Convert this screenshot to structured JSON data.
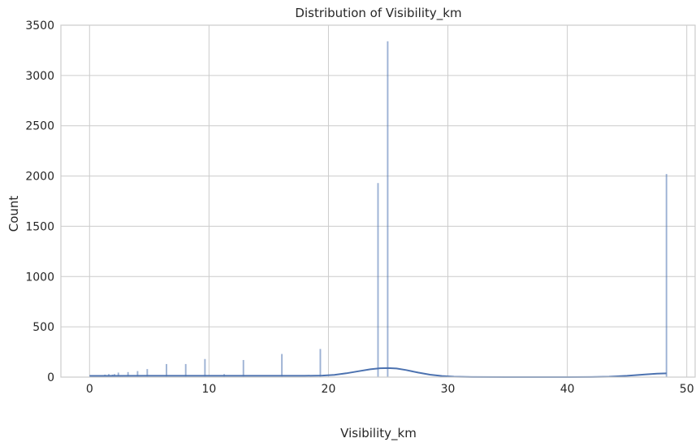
{
  "chart_data": {
    "type": "bar",
    "title": "Distribution of Visibility_km",
    "xlabel": "Visibility_km",
    "ylabel": "Count",
    "xlim": [
      -2.4,
      50.7
    ],
    "ylim": [
      0,
      3500
    ],
    "xticks": [
      0,
      10,
      20,
      30,
      40,
      50
    ],
    "yticks": [
      0,
      500,
      1000,
      1500,
      2000,
      2500,
      3000,
      3500
    ],
    "grid": true,
    "legend": "none",
    "series": [
      {
        "values": [
          {
            "x": 0.16,
            "y": 15
          },
          {
            "x": 0.32,
            "y": 15
          },
          {
            "x": 0.48,
            "y": 15
          },
          {
            "x": 0.64,
            "y": 15
          },
          {
            "x": 0.8,
            "y": 15
          },
          {
            "x": 0.97,
            "y": 20
          },
          {
            "x": 1.13,
            "y": 20
          },
          {
            "x": 1.29,
            "y": 25
          },
          {
            "x": 1.61,
            "y": 30
          },
          {
            "x": 1.77,
            "y": 20
          },
          {
            "x": 1.93,
            "y": 25
          },
          {
            "x": 2.09,
            "y": 30
          },
          {
            "x": 2.41,
            "y": 45
          },
          {
            "x": 2.57,
            "y": 20
          },
          {
            "x": 2.74,
            "y": 20
          },
          {
            "x": 3.22,
            "y": 50
          },
          {
            "x": 4.02,
            "y": 60
          },
          {
            "x": 4.83,
            "y": 80
          },
          {
            "x": 6.44,
            "y": 130
          },
          {
            "x": 8.05,
            "y": 130
          },
          {
            "x": 9.66,
            "y": 180
          },
          {
            "x": 11.27,
            "y": 30
          },
          {
            "x": 12.88,
            "y": 170
          },
          {
            "x": 16.1,
            "y": 230
          },
          {
            "x": 19.32,
            "y": 280
          },
          {
            "x": 24.15,
            "y": 1930
          },
          {
            "x": 24.96,
            "y": 3340
          },
          {
            "x": 48.3,
            "y": 2020
          }
        ]
      }
    ],
    "kde": [
      {
        "x": 0,
        "y": 12
      },
      {
        "x": 5,
        "y": 13
      },
      {
        "x": 10,
        "y": 13
      },
      {
        "x": 15,
        "y": 13
      },
      {
        "x": 18,
        "y": 13
      },
      {
        "x": 19.5,
        "y": 15
      },
      {
        "x": 20.5,
        "y": 22
      },
      {
        "x": 21.5,
        "y": 38
      },
      {
        "x": 22.5,
        "y": 58
      },
      {
        "x": 23.5,
        "y": 78
      },
      {
        "x": 24.3,
        "y": 88
      },
      {
        "x": 25,
        "y": 90
      },
      {
        "x": 25.7,
        "y": 86
      },
      {
        "x": 26.5,
        "y": 70
      },
      {
        "x": 27.5,
        "y": 45
      },
      {
        "x": 28.5,
        "y": 24
      },
      {
        "x": 29.5,
        "y": 11
      },
      {
        "x": 30.5,
        "y": 4
      },
      {
        "x": 32,
        "y": 1
      },
      {
        "x": 35,
        "y": 0
      },
      {
        "x": 40,
        "y": 0
      },
      {
        "x": 42,
        "y": 1
      },
      {
        "x": 43.5,
        "y": 4
      },
      {
        "x": 45,
        "y": 13
      },
      {
        "x": 46.5,
        "y": 26
      },
      {
        "x": 47.5,
        "y": 34
      },
      {
        "x": 48.3,
        "y": 37
      }
    ],
    "colors": {
      "bar": "#4c72b0",
      "kde": "#4c72b0",
      "grid": "#cccccc",
      "spine": "#cccccc",
      "text": "#262626"
    }
  }
}
